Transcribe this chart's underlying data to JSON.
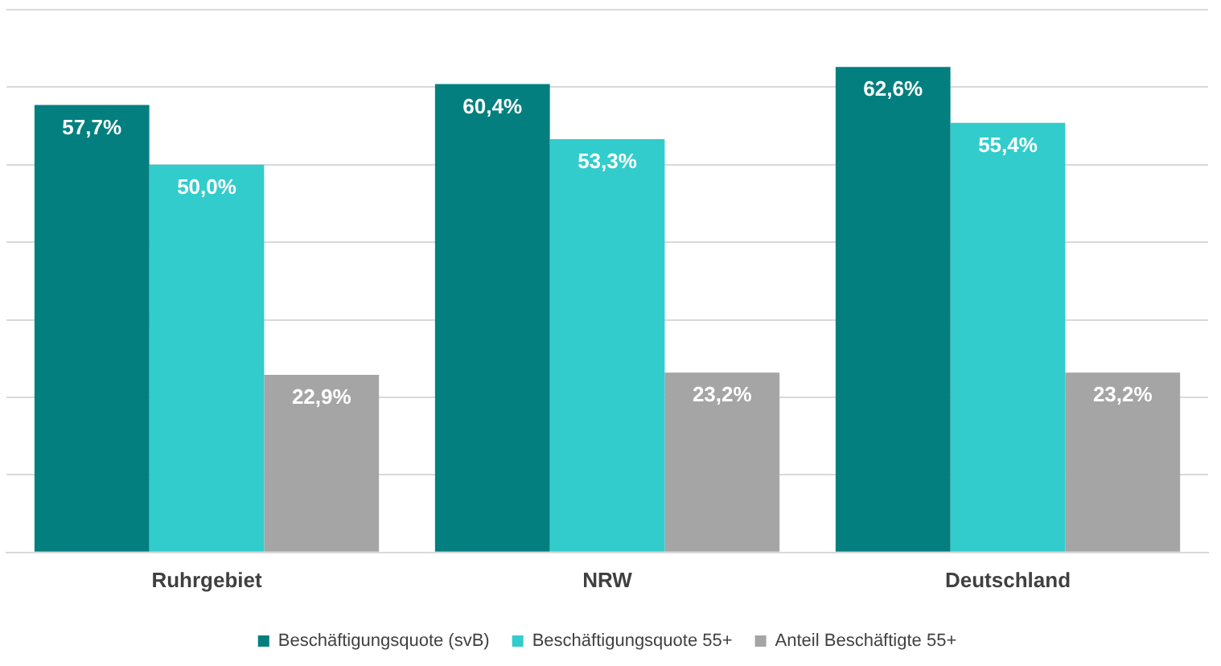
{
  "chart_data": {
    "type": "bar",
    "categories": [
      "Ruhrgebiet",
      "NRW",
      "Deutschland"
    ],
    "series": [
      {
        "name": "Beschäftigungsquote (svB)",
        "color": "#037f7f",
        "values": [
          57.7,
          60.4,
          62.6
        ],
        "value_labels": [
          "57,7%",
          "60,4%",
          "62,6%"
        ]
      },
      {
        "name": "Beschäftigungsquote 55+",
        "color": "#33cccc",
        "values": [
          50.0,
          53.3,
          55.4
        ],
        "value_labels": [
          "50,0%",
          "53,3%",
          "55,4%"
        ]
      },
      {
        "name": "Anteil Beschäftigte 55+",
        "color": "#a5a5a5",
        "values": [
          22.9,
          23.2,
          23.2
        ],
        "value_labels": [
          "22,9%",
          "23,2%",
          "23,2%"
        ]
      }
    ],
    "ylim": [
      0,
      70
    ],
    "yticks": [
      {
        "value": 0,
        "label": null
      },
      {
        "value": 10,
        "label": null
      },
      {
        "value": 20,
        "label": null
      },
      {
        "value": 30,
        "label": null
      },
      {
        "value": 40,
        "label": null
      },
      {
        "value": 50,
        "label": null
      },
      {
        "value": 60,
        "label": null
      },
      {
        "value": 70,
        "label": null
      }
    ],
    "tick_labels": "x",
    "grid": "y",
    "legend": "bottom"
  }
}
